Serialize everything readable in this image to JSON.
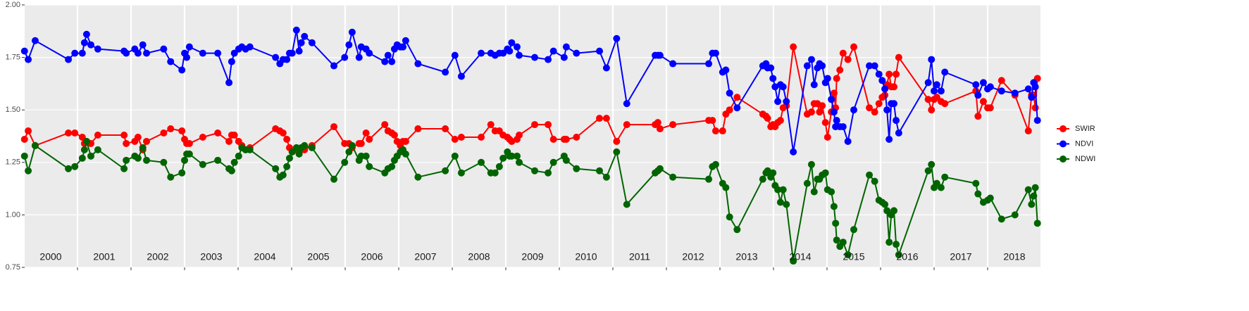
{
  "chart_data": {
    "type": "line",
    "x": [
      2000.01,
      2000.08,
      2000.21,
      2000.83,
      2000.95,
      2001.09,
      2001.13,
      2001.17,
      2001.25,
      2001.38,
      2001.87,
      2001.91,
      2002.07,
      2002.13,
      2002.22,
      2002.29,
      2002.61,
      2002.74,
      2002.95,
      2003.0,
      2003.04,
      2003.09,
      2003.34,
      2003.62,
      2003.83,
      2003.88,
      2003.93,
      2004.01,
      2004.07,
      2004.14,
      2004.22,
      2004.7,
      2004.78,
      2004.84,
      2004.91,
      2004.96,
      2005.01,
      2005.09,
      2005.14,
      2005.18,
      2005.24,
      2005.38,
      2005.79,
      2005.99,
      2006.07,
      2006.13,
      2006.26,
      2006.3,
      2006.39,
      2006.45,
      2006.74,
      2006.8,
      2006.87,
      2006.92,
      2006.97,
      2007.03,
      2007.08,
      2007.13,
      2007.36,
      2007.87,
      2008.05,
      2008.17,
      2008.54,
      2008.72,
      2008.8,
      2008.88,
      2008.95,
      2009.03,
      2009.07,
      2009.11,
      2009.21,
      2009.25,
      2009.54,
      2009.79,
      2009.89,
      2010.09,
      2010.13,
      2010.32,
      2010.75,
      2010.88,
      2011.07,
      2011.26,
      2011.79,
      2011.84,
      2011.88,
      2012.12,
      2012.79,
      2012.86,
      2012.92,
      2013.05,
      2013.11,
      2013.18,
      2013.32,
      2013.8,
      2013.86,
      2013.89,
      2013.95,
      2013.99,
      2014.03,
      2014.08,
      2014.13,
      2014.18,
      2014.24,
      2014.37,
      2014.63,
      2014.71,
      2014.76,
      2014.82,
      2014.86,
      2014.91,
      2014.97,
      2015.01,
      2015.08,
      2015.13,
      2015.16,
      2015.18,
      2015.24,
      2015.3,
      2015.39,
      2015.5,
      2015.79,
      2015.89,
      2015.97,
      2016.03,
      2016.08,
      2016.12,
      2016.16,
      2016.2,
      2016.25,
      2016.29,
      2016.34,
      2016.89,
      2016.95,
      2017.0,
      2017.05,
      2017.13,
      2017.2,
      2017.78,
      2017.82,
      2017.92,
      2018.0,
      2018.05,
      2018.26,
      2018.51,
      2018.76,
      2018.82,
      2018.86,
      2018.89,
      2018.93
    ],
    "series": [
      {
        "name": "SWIR",
        "color": "#ff0000",
        "values": [
          1.36,
          1.4,
          1.33,
          1.39,
          1.39,
          1.37,
          1.34,
          1.35,
          1.34,
          1.38,
          1.38,
          1.34,
          1.35,
          1.37,
          1.31,
          1.35,
          1.39,
          1.41,
          1.4,
          1.36,
          1.34,
          1.34,
          1.37,
          1.39,
          1.35,
          1.38,
          1.38,
          1.35,
          1.33,
          1.31,
          1.32,
          1.41,
          1.4,
          1.39,
          1.36,
          1.32,
          1.3,
          1.31,
          1.31,
          1.31,
          1.31,
          1.33,
          1.42,
          1.34,
          1.34,
          1.32,
          1.34,
          1.34,
          1.39,
          1.36,
          1.43,
          1.4,
          1.39,
          1.38,
          1.35,
          1.33,
          1.35,
          1.35,
          1.41,
          1.41,
          1.36,
          1.37,
          1.37,
          1.43,
          1.4,
          1.4,
          1.38,
          1.37,
          1.36,
          1.35,
          1.36,
          1.38,
          1.43,
          1.43,
          1.36,
          1.36,
          1.36,
          1.37,
          1.46,
          1.46,
          1.35,
          1.43,
          1.43,
          1.44,
          1.41,
          1.43,
          1.45,
          1.45,
          1.4,
          1.4,
          1.48,
          1.5,
          1.56,
          1.48,
          1.47,
          1.46,
          1.42,
          1.43,
          1.42,
          1.44,
          1.45,
          1.51,
          1.52,
          1.8,
          1.48,
          1.49,
          1.53,
          1.53,
          1.49,
          1.52,
          1.44,
          1.37,
          1.49,
          1.58,
          1.51,
          1.65,
          1.69,
          1.77,
          1.74,
          1.8,
          1.51,
          1.49,
          1.53,
          1.56,
          1.57,
          1.62,
          1.67,
          1.61,
          1.61,
          1.67,
          1.75,
          1.55,
          1.5,
          1.55,
          1.56,
          1.54,
          1.53,
          1.59,
          1.47,
          1.54,
          1.51,
          1.51,
          1.64,
          1.57,
          1.4,
          1.57,
          1.57,
          1.51,
          1.65
        ]
      },
      {
        "name": "NDVI",
        "color": "#0000ff",
        "values": [
          1.78,
          1.74,
          1.83,
          1.74,
          1.77,
          1.77,
          1.82,
          1.86,
          1.81,
          1.79,
          1.78,
          1.77,
          1.79,
          1.77,
          1.81,
          1.77,
          1.79,
          1.73,
          1.69,
          1.77,
          1.75,
          1.8,
          1.77,
          1.77,
          1.63,
          1.73,
          1.77,
          1.79,
          1.8,
          1.79,
          1.8,
          1.75,
          1.72,
          1.74,
          1.74,
          1.77,
          1.77,
          1.88,
          1.78,
          1.82,
          1.85,
          1.82,
          1.71,
          1.75,
          1.81,
          1.87,
          1.75,
          1.8,
          1.79,
          1.77,
          1.73,
          1.76,
          1.73,
          1.79,
          1.81,
          1.8,
          1.8,
          1.83,
          1.72,
          1.68,
          1.76,
          1.66,
          1.77,
          1.77,
          1.76,
          1.77,
          1.77,
          1.79,
          1.78,
          1.82,
          1.8,
          1.76,
          1.75,
          1.74,
          1.78,
          1.75,
          1.8,
          1.77,
          1.78,
          1.7,
          1.84,
          1.53,
          1.76,
          1.76,
          1.76,
          1.72,
          1.72,
          1.77,
          1.77,
          1.68,
          1.69,
          1.58,
          1.51,
          1.71,
          1.72,
          1.7,
          1.7,
          1.65,
          1.61,
          1.54,
          1.62,
          1.61,
          1.54,
          1.3,
          1.71,
          1.74,
          1.62,
          1.7,
          1.72,
          1.71,
          1.63,
          1.65,
          1.55,
          1.49,
          1.42,
          1.45,
          1.42,
          1.42,
          1.35,
          1.5,
          1.71,
          1.71,
          1.67,
          1.64,
          1.6,
          1.5,
          1.36,
          1.53,
          1.53,
          1.45,
          1.39,
          1.63,
          1.74,
          1.59,
          1.62,
          1.59,
          1.68,
          1.62,
          1.57,
          1.63,
          1.6,
          1.61,
          1.59,
          1.58,
          1.6,
          1.56,
          1.63,
          1.61,
          1.45
        ]
      },
      {
        "name": "NDWI",
        "color": "#006400",
        "values": [
          1.28,
          1.21,
          1.33,
          1.22,
          1.23,
          1.27,
          1.31,
          1.35,
          1.28,
          1.31,
          1.22,
          1.26,
          1.28,
          1.27,
          1.32,
          1.26,
          1.25,
          1.18,
          1.2,
          1.26,
          1.29,
          1.29,
          1.24,
          1.26,
          1.22,
          1.21,
          1.25,
          1.28,
          1.32,
          1.31,
          1.31,
          1.22,
          1.18,
          1.19,
          1.23,
          1.27,
          1.3,
          1.32,
          1.29,
          1.32,
          1.33,
          1.32,
          1.17,
          1.25,
          1.3,
          1.33,
          1.26,
          1.28,
          1.28,
          1.23,
          1.2,
          1.22,
          1.23,
          1.26,
          1.28,
          1.3,
          1.31,
          1.29,
          1.18,
          1.21,
          1.28,
          1.2,
          1.25,
          1.2,
          1.2,
          1.23,
          1.27,
          1.3,
          1.28,
          1.28,
          1.28,
          1.25,
          1.21,
          1.2,
          1.25,
          1.28,
          1.26,
          1.22,
          1.21,
          1.18,
          1.3,
          1.05,
          1.2,
          1.21,
          1.22,
          1.18,
          1.17,
          1.23,
          1.24,
          1.15,
          1.13,
          0.99,
          0.93,
          1.17,
          1.2,
          1.21,
          1.18,
          1.2,
          1.14,
          1.12,
          1.06,
          1.12,
          1.05,
          0.78,
          1.15,
          1.24,
          1.11,
          1.17,
          1.17,
          1.19,
          1.2,
          1.12,
          1.11,
          1.04,
          0.96,
          0.88,
          0.85,
          0.87,
          0.81,
          0.93,
          1.19,
          1.16,
          1.07,
          1.06,
          1.05,
          1.02,
          0.87,
          1.0,
          1.02,
          0.86,
          0.81,
          1.21,
          1.24,
          1.13,
          1.15,
          1.13,
          1.18,
          1.15,
          1.1,
          1.06,
          1.07,
          1.08,
          0.98,
          1.0,
          1.12,
          1.05,
          1.09,
          1.13,
          0.96
        ]
      }
    ],
    "xlim": [
      2000,
      2019
    ],
    "xticks": [
      2001,
      2002,
      2003,
      2004,
      2005,
      2006,
      2007,
      2008,
      2009,
      2010,
      2011,
      2012,
      2013,
      2014,
      2015,
      2016,
      2017,
      2018
    ],
    "year_labels": [
      {
        "label": "2000",
        "x": 2000.5
      },
      {
        "label": "2001",
        "x": 2001.5
      },
      {
        "label": "2002",
        "x": 2002.5
      },
      {
        "label": "2003",
        "x": 2003.5
      },
      {
        "label": "2004",
        "x": 2004.5
      },
      {
        "label": "2005",
        "x": 2005.5
      },
      {
        "label": "2006",
        "x": 2006.5
      },
      {
        "label": "2007",
        "x": 2007.5
      },
      {
        "label": "2008",
        "x": 2008.5
      },
      {
        "label": "2009",
        "x": 2009.5
      },
      {
        "label": "2010",
        "x": 2010.5
      },
      {
        "label": "2011",
        "x": 2011.5
      },
      {
        "label": "2012",
        "x": 2012.5
      },
      {
        "label": "2013",
        "x": 2013.5
      },
      {
        "label": "2014",
        "x": 2014.5
      },
      {
        "label": "2015",
        "x": 2015.5
      },
      {
        "label": "2016",
        "x": 2016.5
      },
      {
        "label": "2017",
        "x": 2017.5
      },
      {
        "label": "2018",
        "x": 2018.5
      }
    ],
    "ylim": [
      0.75,
      2
    ],
    "yticks": [
      0.75,
      {
        "value": 1,
        "label": "1.00"
      },
      {
        "value": 1.25,
        "label": "1.25"
      },
      {
        "value": 1.5,
        "label": "1.50"
      },
      {
        "value": 1.75,
        "label": "1.75"
      },
      {
        "value": 2,
        "label": "2.00"
      }
    ],
    "grid": true,
    "legend": "right"
  }
}
